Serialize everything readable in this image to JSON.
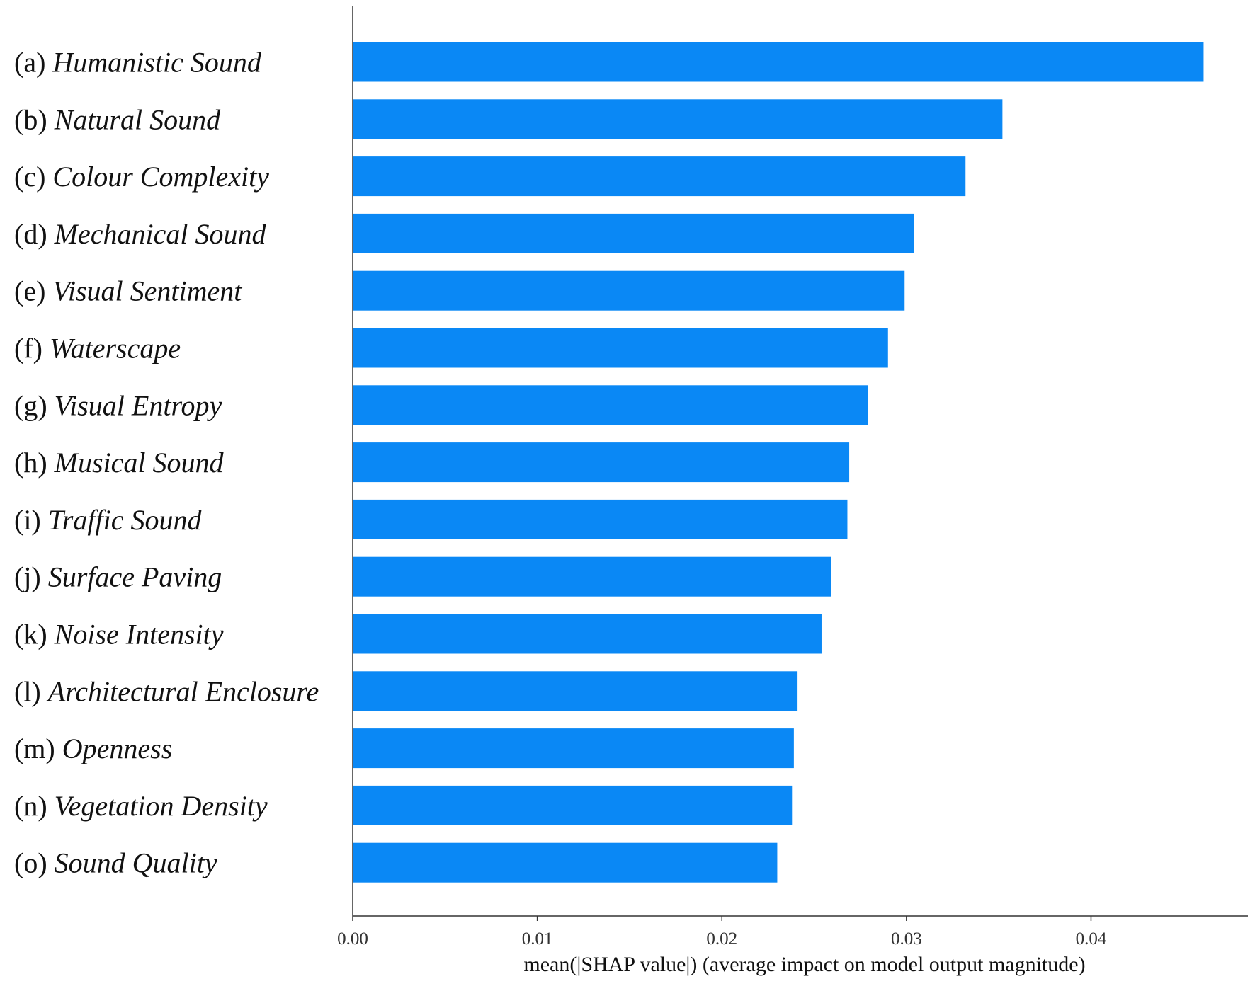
{
  "chart_data": {
    "type": "bar",
    "orientation": "horizontal",
    "categories": [
      {
        "prefix": "(a)",
        "name": "Humanistic Sound"
      },
      {
        "prefix": "(b)",
        "name": "Natural Sound"
      },
      {
        "prefix": "(c)",
        "name": "Colour Complexity"
      },
      {
        "prefix": "(d)",
        "name": "Mechanical Sound"
      },
      {
        "prefix": "(e)",
        "name": "Visual Sentiment"
      },
      {
        "prefix": "(f)",
        "name": "Waterscape"
      },
      {
        "prefix": "(g)",
        "name": "Visual Entropy"
      },
      {
        "prefix": "(h)",
        "name": "Musical Sound"
      },
      {
        "prefix": "(i)",
        "name": "Traffic Sound"
      },
      {
        "prefix": "(j)",
        "name": "Surface Paving"
      },
      {
        "prefix": "(k)",
        "name": "Noise Intensity"
      },
      {
        "prefix": "(l)",
        "name": "Architectural Enclosure"
      },
      {
        "prefix": "(m)",
        "name": "Openness"
      },
      {
        "prefix": "(n)",
        "name": "Vegetation Density"
      },
      {
        "prefix": "(o)",
        "name": "Sound Quality"
      }
    ],
    "values": [
      0.0461,
      0.0352,
      0.0332,
      0.0304,
      0.0299,
      0.029,
      0.0279,
      0.0269,
      0.0268,
      0.0259,
      0.0254,
      0.0241,
      0.0239,
      0.0238,
      0.023
    ],
    "xticks": [
      "0.00",
      "0.01",
      "0.02",
      "0.03",
      "0.04"
    ],
    "xtick_values": [
      0,
      0.01,
      0.02,
      0.03,
      0.04
    ],
    "xlim": [
      0,
      0.0485
    ],
    "xlabel": "mean(|SHAP value|) (average impact on model output magnitude)",
    "bar_color": "#0a88f5",
    "axis_color": "#333333",
    "grid": false,
    "legend": "none"
  }
}
